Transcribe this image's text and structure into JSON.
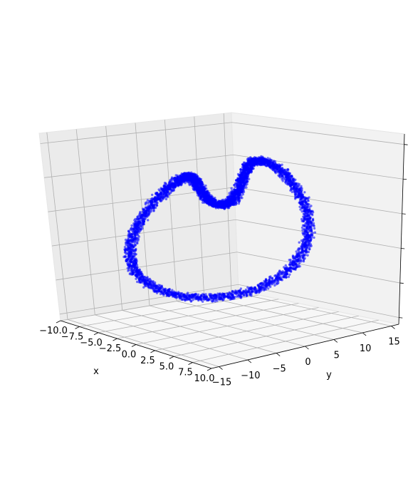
{
  "chart_data": {
    "type": "scatter",
    "projection": "3d",
    "title": "",
    "xlabel": "x",
    "ylabel": "y",
    "zlabel": "",
    "xlim": [
      -10,
      10
    ],
    "ylim": [
      -15,
      15
    ],
    "zlim": [
      0,
      20
    ],
    "x_ticks": [
      -10.0,
      -7.5,
      -5.0,
      -2.5,
      0.0,
      2.5,
      5.0,
      7.5,
      10.0
    ],
    "x_tick_labels": [
      "−10.0",
      "−7.5",
      "−5.0",
      "−2.5",
      "0.0",
      "2.5",
      "5.0",
      "7.5",
      "10.0"
    ],
    "y_ticks": [
      -15,
      -10,
      -5,
      0,
      5,
      10,
      15
    ],
    "y_tick_labels": [
      "−15",
      "−10",
      "−5",
      "0",
      "5",
      "10",
      "15"
    ],
    "z_ticks": [
      0,
      4,
      8,
      12,
      16,
      20
    ],
    "z_tick_labels": [
      "",
      "",
      "",
      "",
      "",
      ""
    ],
    "grid": true,
    "colors": {
      "points": "#0000ff",
      "pane_left": "#ebebeb",
      "pane_right": "#f2f2f2",
      "pane_floor": "#f7f7f7",
      "grid": "#b0b0b0"
    },
    "series": [
      {
        "marker": "point",
        "curve": "quatrefoil",
        "samples": [
          {
            "x": 0.0,
            "y": 0.0,
            "z": 0.0
          },
          {
            "x": 1.8,
            "y": 9.6,
            "z": 2.5
          },
          {
            "x": -1.8,
            "y": 12.6,
            "z": 9.3
          },
          {
            "x": -1.8,
            "y": 6.6,
            "z": 14.7
          },
          {
            "x": 1.8,
            "y": -3.1,
            "z": 14.9
          },
          {
            "x": -1.8,
            "y": -10.9,
            "z": 12.0
          },
          {
            "x": -1.8,
            "y": -11.1,
            "z": 4.2
          },
          {
            "x": 1.8,
            "y": -3.6,
            "z": 0.3
          },
          {
            "x": 0.0,
            "y": 0.0,
            "z": 0.0
          }
        ]
      }
    ]
  }
}
